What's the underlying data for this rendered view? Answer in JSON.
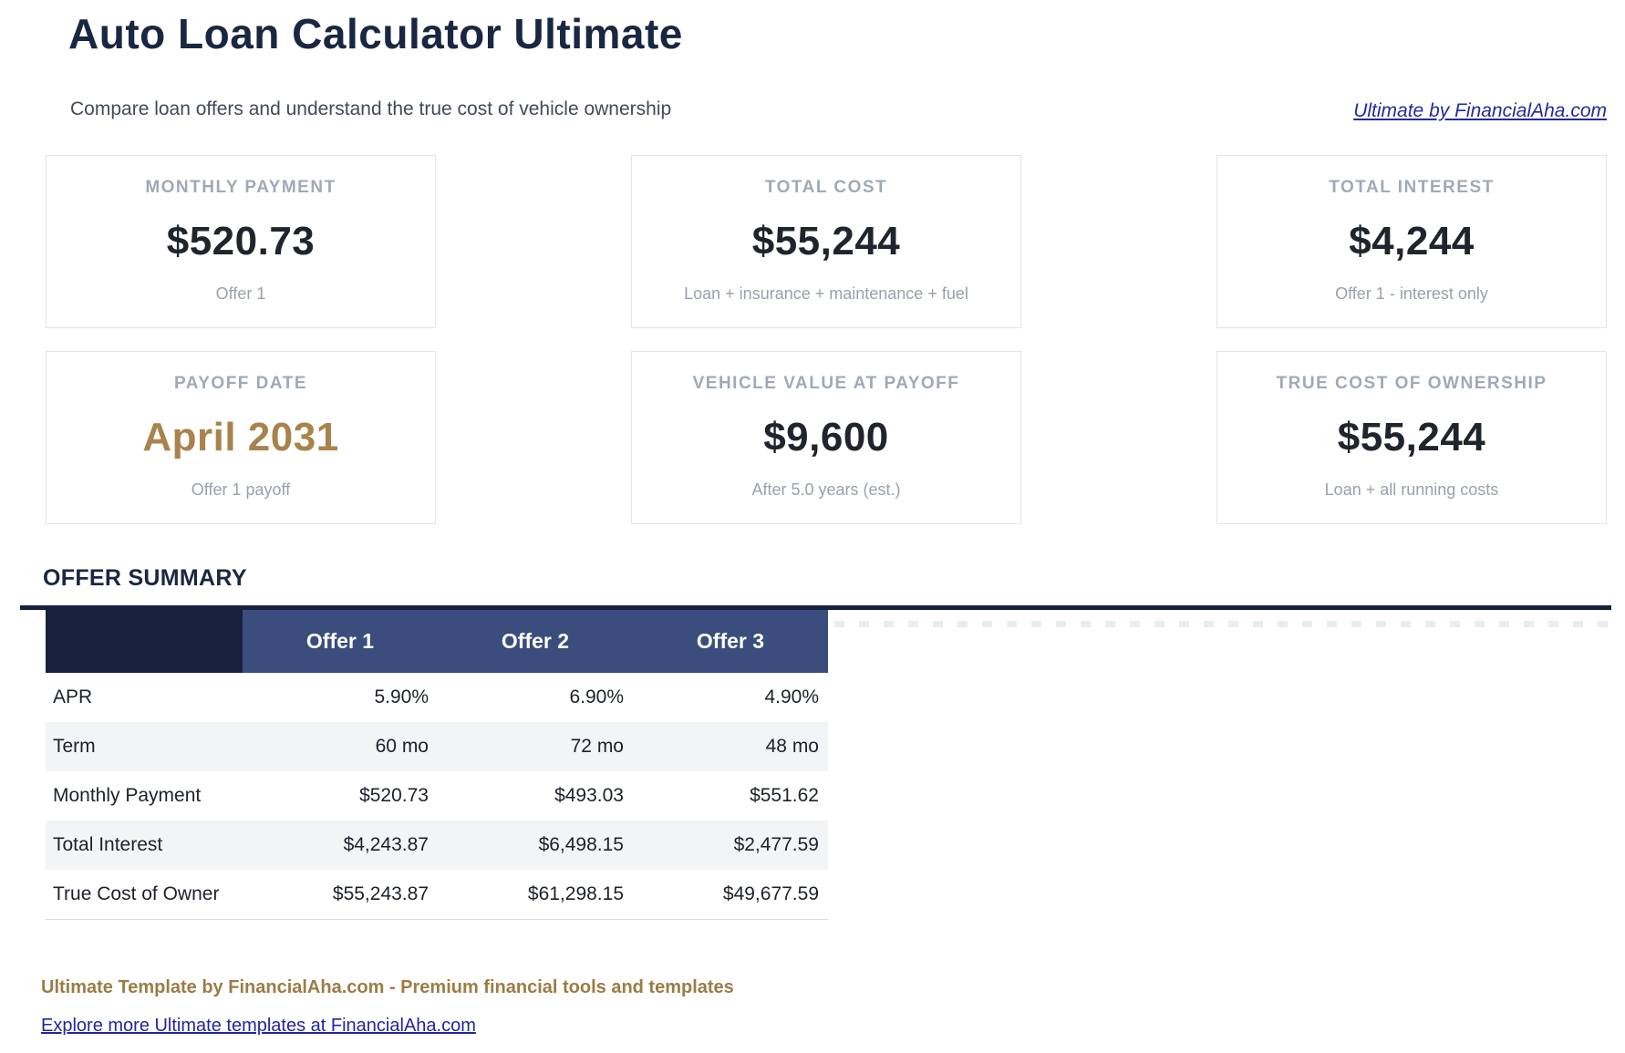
{
  "page": {
    "title": "Auto Loan Calculator Ultimate",
    "subtitle": "Compare loan offers and understand the true cost of vehicle ownership",
    "brand_link": "Ultimate by FinancialAha.com"
  },
  "colors": {
    "heading_navy": "#1a2742",
    "gold_accent": "#a8834c",
    "table_header_dark": "#16213d",
    "table_header_blue": "#3a4d7d",
    "row_stripe": "#f2f4f6",
    "link_blue": "#232a9c",
    "footer_gold": "#9b7c45"
  },
  "cards": [
    {
      "label": "MONTHLY PAYMENT",
      "value": "$520.73",
      "note": "Offer 1"
    },
    {
      "label": "TOTAL COST",
      "value": "$55,244",
      "note": "Loan + insurance + maintenance + fuel"
    },
    {
      "label": "TOTAL INTEREST",
      "value": "$4,244",
      "note": "Offer 1 - interest only"
    },
    {
      "label": "PAYOFF DATE",
      "value": "April 2031",
      "note": "Offer 1 payoff"
    },
    {
      "label": "VEHICLE VALUE AT PAYOFF",
      "value": "$9,600",
      "note": "After 5.0 years (est.)"
    },
    {
      "label": "TRUE COST OF OWNERSHIP",
      "value": "$55,244",
      "note": "Loan + all running costs"
    }
  ],
  "summary": {
    "heading": "OFFER SUMMARY",
    "columns": [
      "Offer 1",
      "Offer 2",
      "Offer 3"
    ],
    "rows": [
      {
        "label": "APR",
        "values": [
          "5.90%",
          "6.90%",
          "4.90%"
        ]
      },
      {
        "label": "Term",
        "values": [
          "60 mo",
          "72 mo",
          "48 mo"
        ]
      },
      {
        "label": "Monthly Payment",
        "values": [
          "$520.73",
          "$493.03",
          "$551.62"
        ]
      },
      {
        "label": "Total Interest",
        "values": [
          "$4,243.87",
          "$6,498.15",
          "$2,477.59"
        ]
      },
      {
        "label": "True Cost of Owner",
        "values": [
          "$55,243.87",
          "$61,298.15",
          "$49,677.59"
        ]
      }
    ]
  },
  "footer": {
    "tagline": "Ultimate Template by FinancialAha.com - Premium financial tools and templates",
    "link": "Explore more Ultimate templates at FinancialAha.com"
  }
}
